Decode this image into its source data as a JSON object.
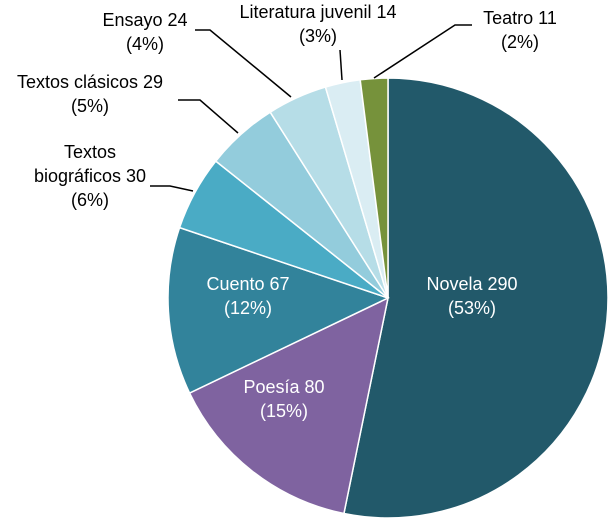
{
  "chart_data": {
    "type": "pie",
    "categories": [
      "Novela",
      "Poesía",
      "Cuento",
      "Textos biográficos",
      "Textos clásicos",
      "Ensayo",
      "Literatura juvenil",
      "Teatro"
    ],
    "values": [
      290,
      80,
      67,
      30,
      29,
      24,
      14,
      11
    ],
    "percent_labels": [
      "(53%)",
      "(15%)",
      "(12%)",
      "(6%)",
      "(5%)",
      "(4%)",
      "(3%)",
      "(2%)"
    ],
    "colors": [
      "#22596a",
      "#7f63a0",
      "#32839b",
      "#4aabc5",
      "#93ccdc",
      "#b6dde7",
      "#daedf3",
      "#76923b"
    ],
    "start_angle": 0,
    "direction": "clockwise"
  }
}
